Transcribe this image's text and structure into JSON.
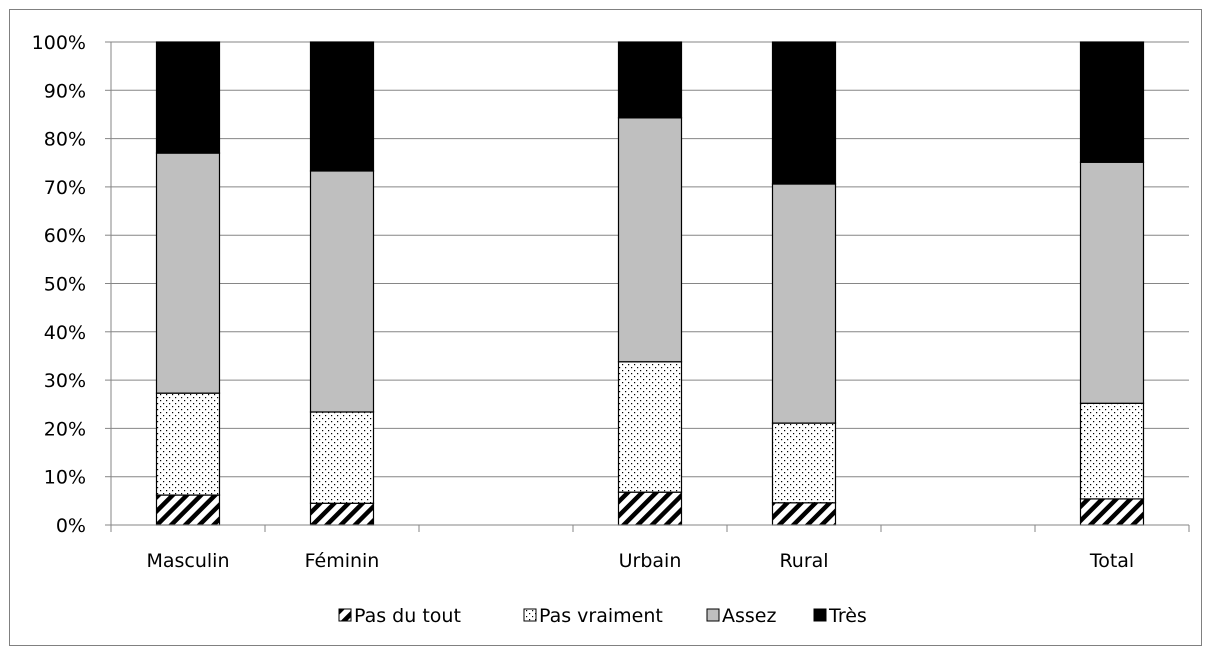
{
  "chart_data": {
    "type": "bar",
    "stacked": true,
    "percent": true,
    "categories": [
      "Masculin",
      "Féminin",
      "",
      "Urbain",
      "Rural",
      "",
      "Total"
    ],
    "series": [
      {
        "name": "Pas du tout",
        "values": [
          6.2,
          4.5,
          null,
          6.8,
          4.6,
          null,
          5.4
        ],
        "color": "#ffffff",
        "pattern": "diagonal-hatch"
      },
      {
        "name": "Pas vraiment",
        "values": [
          21.1,
          18.9,
          null,
          27.0,
          16.5,
          null,
          19.8
        ],
        "color": "#ffffff",
        "pattern": "dots"
      },
      {
        "name": "Assez",
        "values": [
          49.7,
          49.9,
          null,
          50.5,
          49.5,
          null,
          49.9
        ],
        "color": "#bfbfbf",
        "pattern": "solid"
      },
      {
        "name": "Très",
        "values": [
          23.0,
          26.7,
          null,
          15.7,
          29.4,
          null,
          24.9
        ],
        "color": "#000000",
        "pattern": "solid"
      }
    ],
    "y_ticks": [
      "0%",
      "10%",
      "20%",
      "30%",
      "40%",
      "50%",
      "60%",
      "70%",
      "80%",
      "90%",
      "100%"
    ],
    "ylim": [
      0,
      100
    ],
    "grid": true,
    "legend_position": "bottom"
  }
}
